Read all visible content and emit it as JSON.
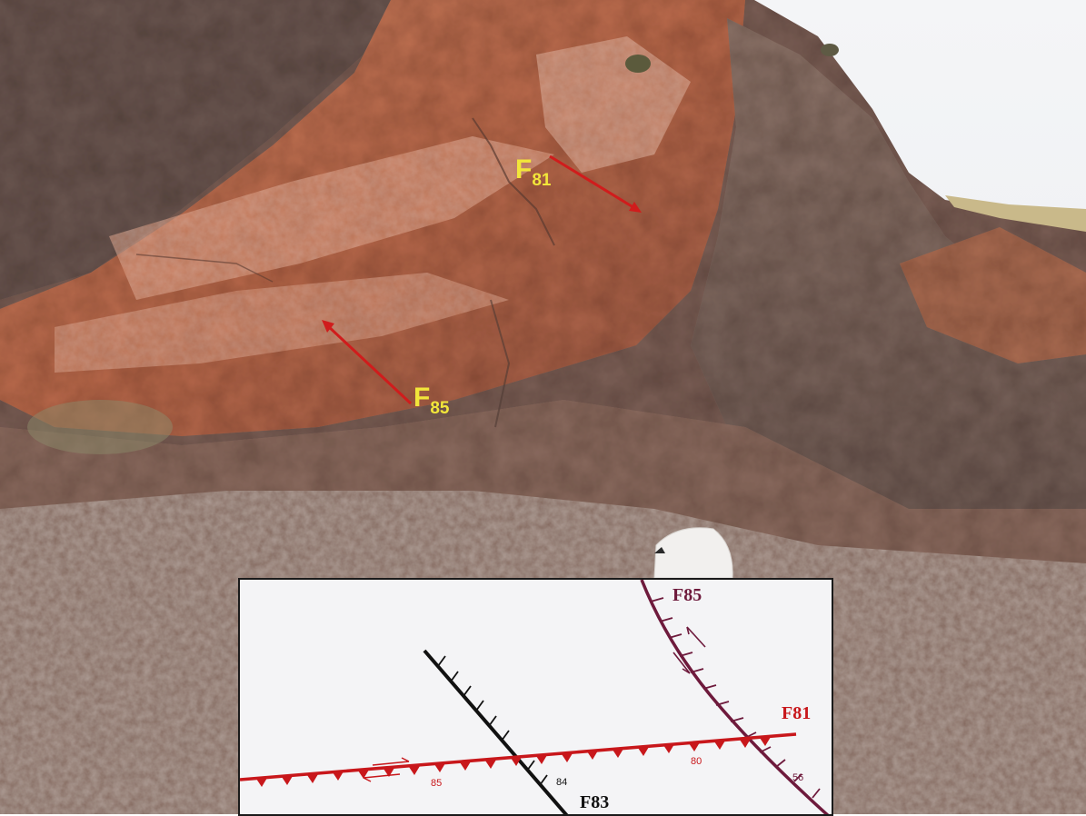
{
  "photo": {
    "labels": [
      {
        "id": "F81",
        "letter": "F",
        "sub": "81"
      },
      {
        "id": "F85",
        "letter": "F",
        "sub": "85"
      }
    ],
    "colors": {
      "label": "#f2e63a",
      "arrow": "#d01c1c"
    }
  },
  "inset": {
    "faults": [
      {
        "name": "F85",
        "color": "#6e1a3c"
      },
      {
        "name": "F81",
        "color": "#c8171b"
      },
      {
        "name": "F83",
        "color": "#111111"
      }
    ],
    "dips": {
      "f81_left": "85",
      "f81_right": "80",
      "f83": "84",
      "f85": "56"
    }
  }
}
